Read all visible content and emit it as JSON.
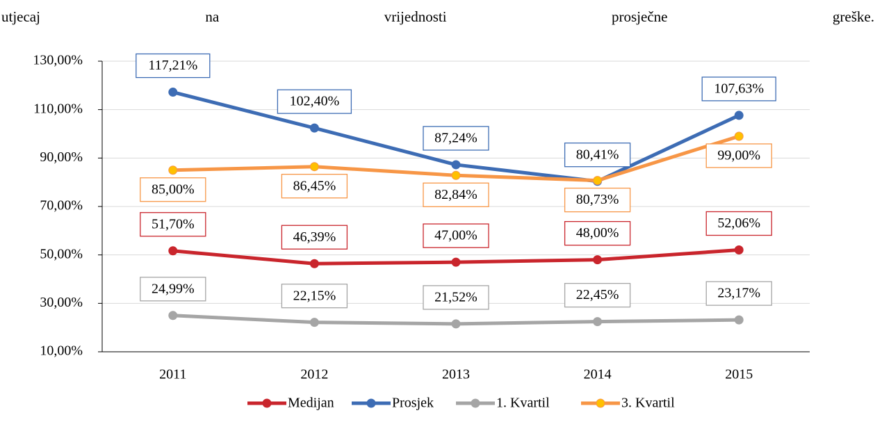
{
  "text_line": "utjecaj na vrijednosti prosječne greške.",
  "chart_data": {
    "type": "line",
    "categories": [
      "2011",
      "2012",
      "2013",
      "2014",
      "2015"
    ],
    "series": [
      {
        "name": "Medijan",
        "color": "#c9252c",
        "marker_color": "#c9252c",
        "values": [
          51.7,
          46.39,
          47.0,
          48.0,
          52.06
        ],
        "value_labels": [
          "51,70%",
          "46,39%",
          "47,00%",
          "48,00%",
          "52,06%"
        ]
      },
      {
        "name": "Prosjek",
        "color": "#3d6cb4",
        "marker_color": "#3d6cb4",
        "values": [
          117.21,
          102.4,
          87.24,
          80.41,
          107.63
        ],
        "value_labels": [
          "117,21%",
          "102,40%",
          "87,24%",
          "80,41%",
          "107,63%"
        ]
      },
      {
        "name": "1. Kvartil",
        "color": "#a5a5a5",
        "marker_color": "#a5a5a5",
        "values": [
          24.99,
          22.15,
          21.52,
          22.45,
          23.17
        ],
        "value_labels": [
          "24,99%",
          "22,15%",
          "21,52%",
          "22,45%",
          "23,17%"
        ]
      },
      {
        "name": "3. Kvartil",
        "color": "#f79646",
        "marker_color": "#ffc000",
        "values": [
          85.0,
          86.45,
          82.84,
          80.73,
          99.0
        ],
        "value_labels": [
          "85,00%",
          "86,45%",
          "82,84%",
          "80,73%",
          "99,00%"
        ]
      }
    ],
    "ylim": [
      10,
      130
    ],
    "yticks": [
      {
        "value": 10,
        "label": "10,00%"
      },
      {
        "value": 30,
        "label": "30,00%"
      },
      {
        "value": 50,
        "label": "50,00%"
      },
      {
        "value": 70,
        "label": "70,00%"
      },
      {
        "value": 90,
        "label": "90,00%"
      },
      {
        "value": 110,
        "label": "110,00%"
      },
      {
        "value": 130,
        "label": "130,00%"
      }
    ],
    "grid": true,
    "legend": "bottom"
  }
}
